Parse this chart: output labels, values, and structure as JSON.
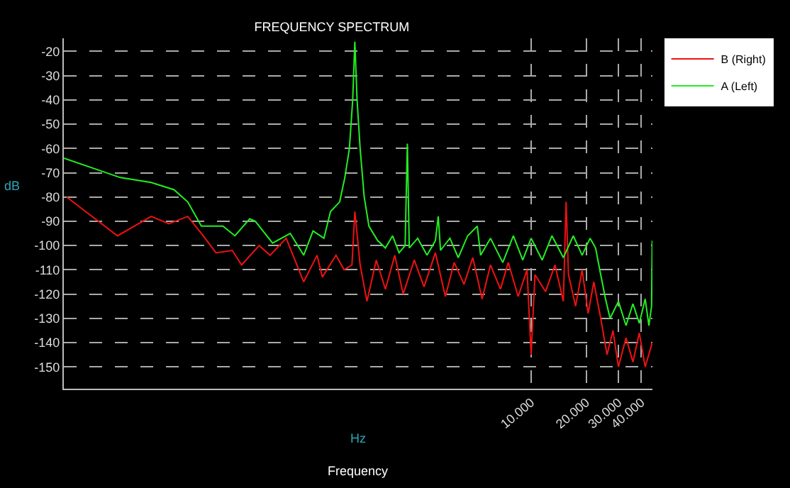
{
  "chart_data": {
    "type": "line",
    "title": "FREQUENCY SPECTRUM",
    "xlabel": "Hz",
    "ylabel": "dB",
    "annotations": [
      "Frequency"
    ],
    "log": "x",
    "grid": true,
    "legend": "top right",
    "marker": "none",
    "line_style": "solid",
    "xlim": [
      28,
      46000
    ],
    "ylim": [
      -159,
      -14.6
    ],
    "xticks": [
      {
        "value": 10000,
        "label": "10.000"
      },
      {
        "value": 20000,
        "label": "20.000"
      },
      {
        "value": 30000,
        "label": "30.000"
      },
      {
        "value": 40000,
        "label": "40.000"
      }
    ],
    "yticks": [
      -20,
      -30,
      -40,
      -50,
      -60,
      -70,
      -80,
      -90,
      -100,
      -110,
      -120,
      -130,
      -140,
      -150
    ],
    "series": [
      {
        "name": "B (Right)",
        "color": "#ee1111",
        "x": [
          29,
          55,
          84,
          105,
          133,
          158,
          190,
          233,
          262,
          327,
          375,
          459,
          572,
          677,
          724,
          859,
          951,
          1050,
          1089,
          1164,
          1268,
          1426,
          1600,
          1800,
          2000,
          2300,
          2600,
          3000,
          3400,
          3800,
          4300,
          4800,
          5400,
          6000,
          6800,
          7500,
          8500,
          9500,
          10000,
          10500,
          12000,
          13500,
          15000,
          15530,
          16000,
          17500,
          19000,
          20500,
          22000,
          24000,
          26000,
          28000,
          30000,
          33000,
          36000,
          39000,
          42000,
          45900
        ],
        "values": [
          -80,
          -96,
          -88,
          -91,
          -88,
          -95,
          -103,
          -102,
          -108,
          -100,
          -104,
          -97,
          -115,
          -104,
          -113,
          -104,
          -110,
          -108,
          -86,
          -108,
          -123,
          -106,
          -118,
          -104,
          -120,
          -106,
          -117,
          -103,
          -121,
          -107,
          -116,
          -105,
          -122,
          -108,
          -118,
          -107,
          -121,
          -110,
          -145,
          -112,
          -119,
          -108,
          -123,
          -82,
          -112,
          -125,
          -110,
          -128,
          -115,
          -130,
          -145,
          -135,
          -150,
          -138,
          -148,
          -136,
          -150,
          -140
        ]
      },
      {
        "name": "A (Left)",
        "color": "#22ee22",
        "x": [
          28,
          57,
          84,
          112,
          133,
          158,
          207,
          241,
          290,
          311,
          387,
          483,
          572,
          644,
          738,
          802,
          900,
          960,
          1017,
          1060,
          1089,
          1120,
          1164,
          1225,
          1300,
          1452,
          1600,
          1750,
          1900,
          2050,
          2108,
          2160,
          2400,
          2700,
          3000,
          3110,
          3200,
          3600,
          4000,
          4500,
          5080,
          5300,
          6000,
          7000,
          8000,
          9000,
          10000,
          11500,
          13000,
          15000,
          17000,
          19000,
          21000,
          22500,
          24000,
          25500,
          27000,
          30000,
          33000,
          36000,
          39000,
          42000,
          44000,
          45500,
          45900
        ],
        "values": [
          -64,
          -72,
          -74,
          -77,
          -82,
          -92,
          -92,
          -96,
          -89,
          -90,
          -99,
          -95,
          -104,
          -94,
          -97,
          -86,
          -82,
          -72,
          -60,
          -40,
          -16,
          -40,
          -60,
          -80,
          -92,
          -98,
          -101,
          -96,
          -103,
          -100,
          -58,
          -101,
          -97,
          -104,
          -98,
          -88,
          -102,
          -97,
          -105,
          -96,
          -92,
          -104,
          -97,
          -107,
          -96,
          -106,
          -97,
          -106,
          -96,
          -105,
          -96,
          -104,
          -97,
          -101,
          -112,
          -122,
          -130,
          -123,
          -133,
          -124,
          -132,
          -122,
          -133,
          -125,
          -98
        ]
      }
    ]
  }
}
